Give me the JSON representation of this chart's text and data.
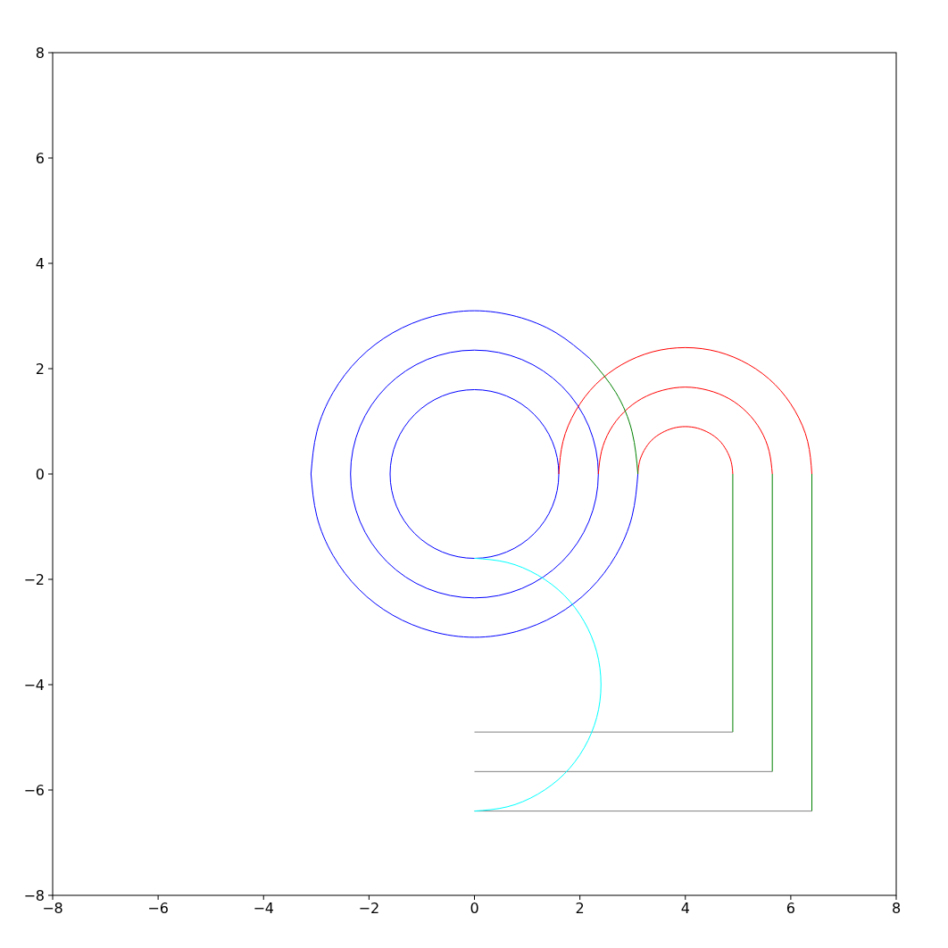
{
  "chart_data": {
    "type": "line",
    "xlim": [
      -8,
      8
    ],
    "ylim": [
      -8,
      8
    ],
    "xticks": [
      {
        "value": -8,
        "label": "−8"
      },
      {
        "value": -6,
        "label": "−6"
      },
      {
        "value": -4,
        "label": "−4"
      },
      {
        "value": -2,
        "label": "−2"
      },
      0,
      2,
      4,
      6,
      8
    ],
    "yticks": [
      {
        "value": -8,
        "label": "−8"
      },
      {
        "value": -6,
        "label": "−6"
      },
      {
        "value": -4,
        "label": "−4"
      },
      {
        "value": -2,
        "label": "−2"
      },
      0,
      2,
      4,
      6,
      8
    ],
    "grid": false,
    "marker": "none",
    "line_style": "solid",
    "series": [
      {
        "color": "#0000ff",
        "x": [
          2.19,
          1.55,
          0.8,
          0,
          -0.8,
          -1.55,
          -2.19,
          -2.68,
          -2.99,
          -3.1
        ],
        "values": [
          2.19,
          2.68,
          2.99,
          3.1,
          2.99,
          2.68,
          2.19,
          1.55,
          0.8,
          0
        ]
      },
      {
        "color": "#0000ff",
        "x": [
          -3.1,
          -2.99,
          -2.68,
          -2.19,
          -1.55,
          -0.8,
          0,
          0.8,
          1.55,
          2.19,
          2.68,
          2.99,
          3.1
        ],
        "values": [
          0,
          -0.8,
          -1.55,
          -2.19,
          -2.68,
          -2.99,
          -3.1,
          -2.99,
          -2.68,
          -2.19,
          -1.55,
          -0.8,
          0
        ]
      },
      {
        "color": "#ff0000",
        "x": [
          3.1,
          3.13,
          3.22,
          3.36,
          3.55,
          3.77,
          4,
          4.23,
          4.45,
          4.64,
          4.78,
          4.87,
          4.9
        ],
        "values": [
          0,
          0.23,
          0.45,
          0.64,
          0.78,
          0.87,
          0.9,
          0.87,
          0.78,
          0.64,
          0.45,
          0.23,
          0
        ]
      },
      {
        "color": "#ff0000",
        "x": [
          2.35,
          2.41,
          2.57,
          2.83,
          3.17,
          3.57,
          4,
          4.43,
          4.83,
          5.17,
          5.43,
          5.59,
          5.65
        ],
        "values": [
          0,
          0.43,
          0.83,
          1.17,
          1.43,
          1.59,
          1.65,
          1.59,
          1.43,
          1.17,
          0.83,
          0.43,
          0
        ]
      },
      {
        "color": "#ff0000",
        "x": [
          1.6,
          1.68,
          1.92,
          2.3,
          2.8,
          3.38,
          4,
          4.62,
          5.2,
          5.7,
          6.08,
          6.32,
          6.4
        ],
        "values": [
          0,
          0.62,
          1.2,
          1.7,
          2.08,
          2.32,
          2.4,
          2.32,
          2.08,
          1.7,
          1.2,
          0.62,
          0
        ]
      },
      {
        "color": "#008000",
        "x": [
          4.9,
          4.9
        ],
        "values": [
          0,
          -4.9
        ]
      },
      {
        "color": "#008000",
        "x": [
          5.65,
          5.65
        ],
        "values": [
          0,
          -5.65
        ]
      },
      {
        "color": "#008000",
        "x": [
          6.4,
          6.4
        ],
        "values": [
          0,
          -6.4
        ]
      },
      {
        "color": "#808080",
        "x": [
          0,
          4.9
        ],
        "values": [
          -4.9,
          -4.9
        ]
      },
      {
        "color": "#808080",
        "x": [
          0,
          5.65
        ],
        "values": [
          -5.65,
          -5.65
        ]
      },
      {
        "color": "#808080",
        "x": [
          0,
          6.4
        ],
        "values": [
          -6.4,
          -6.4
        ]
      },
      {
        "color": "#00ffff",
        "x": [
          0,
          0.62,
          1.2,
          1.7,
          2.08,
          2.32,
          2.4,
          2.32,
          2.08,
          1.7,
          1.2,
          0.62,
          0
        ],
        "values": [
          -1.6,
          -1.68,
          -1.92,
          -2.3,
          -2.8,
          -3.38,
          -4,
          -4.62,
          -5.2,
          -5.7,
          -6.08,
          -6.32,
          -6.4
        ]
      },
      {
        "color": "#008000",
        "x": [
          3.1,
          2.99,
          2.68,
          2.19
        ],
        "values": [
          0,
          0.8,
          1.55,
          2.19
        ]
      }
    ]
  }
}
